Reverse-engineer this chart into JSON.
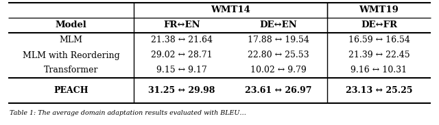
{
  "col_headers_top": [
    "WMT14",
    "WMT19"
  ],
  "col_headers_sub": [
    "Model",
    "FR↔EN",
    "DE↔EN",
    "DE↔FR"
  ],
  "rows": [
    [
      "MLM",
      "21.38 ↔ 21.64",
      "17.88 ↔ 19.54",
      "16.59 ↔ 16.54"
    ],
    [
      "MLM with Reordering",
      "29.02 ↔ 28.71",
      "22.80 ↔ 25.53",
      "21.39 ↔ 22.45"
    ],
    [
      "Transformer",
      "9.15 ↔ 9.17",
      "10.02 ↔ 9.79",
      "9.16 ↔ 10.31"
    ],
    [
      "PEACH",
      "31.25 ↔ 29.98",
      "23.61 ↔ 26.97",
      "23.13 ↔ 25.25"
    ]
  ],
  "caption": "Table 1: The average domain adaptation results evaluated with BLEU…",
  "bg_color": "#ffffff"
}
